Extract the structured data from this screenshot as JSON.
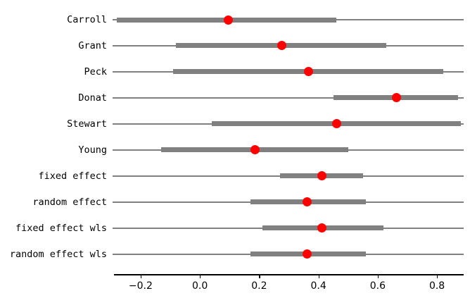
{
  "figure": {
    "background": "#ffffff",
    "title": "",
    "xlabel": "",
    "ylabel": ""
  },
  "chart_data": {
    "type": "forest_dot_plot",
    "title": "",
    "xlabel": "",
    "ylabel": "",
    "legend": null,
    "grid": false,
    "xlim": [
      -0.29,
      0.89
    ],
    "x_ticks": [
      -0.2,
      0.0,
      0.2,
      0.4,
      0.6,
      0.8
    ],
    "x_tick_labels": [
      "−0.2",
      "0.0",
      "0.2",
      "0.4",
      "0.6",
      "0.8"
    ],
    "rows": [
      {
        "label": "Carroll",
        "effect": 0.095,
        "ci_low": -0.28,
        "ci_upp": 0.46
      },
      {
        "label": "Grant",
        "effect": 0.277,
        "ci_low": -0.08,
        "ci_upp": 0.63
      },
      {
        "label": "Peck",
        "effect": 0.367,
        "ci_low": -0.09,
        "ci_upp": 0.82
      },
      {
        "label": "Donat",
        "effect": 0.664,
        "ci_low": 0.45,
        "ci_upp": 0.87
      },
      {
        "label": "Stewart",
        "effect": 0.462,
        "ci_low": 0.04,
        "ci_upp": 0.88
      },
      {
        "label": "Young",
        "effect": 0.185,
        "ci_low": -0.13,
        "ci_upp": 0.5
      },
      {
        "label": "fixed effect",
        "effect": 0.412,
        "ci_low": 0.27,
        "ci_upp": 0.55
      },
      {
        "label": "random effect",
        "effect": 0.362,
        "ci_low": 0.17,
        "ci_upp": 0.56
      },
      {
        "label": "fixed effect wls",
        "effect": 0.412,
        "ci_low": 0.21,
        "ci_upp": 0.62
      },
      {
        "label": "random effect wls",
        "effect": 0.362,
        "ci_low": 0.17,
        "ci_upp": 0.56
      }
    ],
    "colors": {
      "guide_line": "#808080",
      "interval_bar": "#808080",
      "marker": "#ff0000",
      "axis": "#000000",
      "text": "#000000",
      "background": "#ffffff"
    },
    "marker_shape": "circle"
  }
}
